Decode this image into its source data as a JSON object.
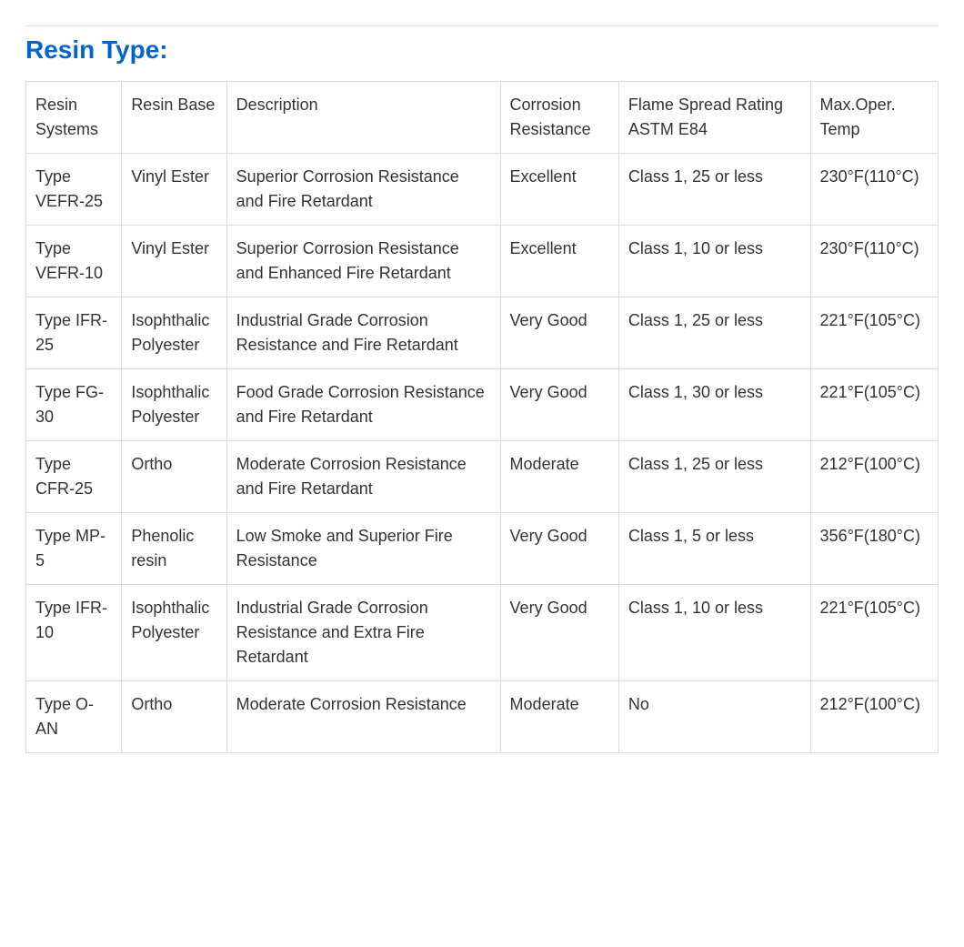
{
  "title": "Resin Type:",
  "title_color": "#0066cc",
  "text_color": "#333333",
  "border_color": "#dddddd",
  "background_color": "#ffffff",
  "font_size_title": 28,
  "font_size_cell": 18,
  "table": {
    "columns": [
      "Resin Systems",
      "Resin Base",
      "Description",
      "Corrosion Resistance",
      "Flame Spread Rating ASTM E84",
      "Max.Oper. Temp"
    ],
    "column_widths_pct": [
      10.5,
      11.5,
      30,
      13,
      21,
      14
    ],
    "rows": [
      [
        "Type VEFR-25",
        "Vinyl Ester",
        "Superior Corrosion Resistance and Fire Retardant",
        "Excellent",
        "Class 1, 25 or less",
        "230°F(110°C)"
      ],
      [
        "Type VEFR-10",
        "Vinyl Ester",
        "Superior Corrosion Resistance and Enhanced Fire Retardant",
        "Excellent",
        "Class 1, 10 or less",
        "230°F(110°C)"
      ],
      [
        "Type IFR-25",
        "Isophthalic Polyester",
        "Industrial Grade Corrosion Resistance and Fire Retardant",
        "Very Good",
        "Class 1, 25 or less",
        "221°F(105°C)"
      ],
      [
        "Type FG-30",
        "Isophthalic Polyester",
        "Food Grade Corrosion Resistance and Fire Retardant",
        "Very Good",
        "Class 1, 30 or less",
        "221°F(105°C)"
      ],
      [
        "Type CFR-25",
        "Ortho",
        "Moderate Corrosion Resistance and Fire Retardant",
        "Moderate",
        "Class 1, 25 or less",
        "212°F(100°C)"
      ],
      [
        "Type MP-5",
        "Phenolic resin",
        "Low Smoke and Superior Fire Resistance",
        "Very Good",
        "Class 1, 5 or less",
        "356°F(180°C)"
      ],
      [
        "Type IFR-10",
        "Isophthalic Polyester",
        "Industrial Grade Corrosion Resistance and Extra Fire Retardant",
        "Very Good",
        "Class 1, 10 or less",
        "221°F(105°C)"
      ],
      [
        "Type O-AN",
        "Ortho",
        "Moderate Corrosion Resistance",
        "Moderate",
        "No",
        "212°F(100°C)"
      ]
    ]
  }
}
